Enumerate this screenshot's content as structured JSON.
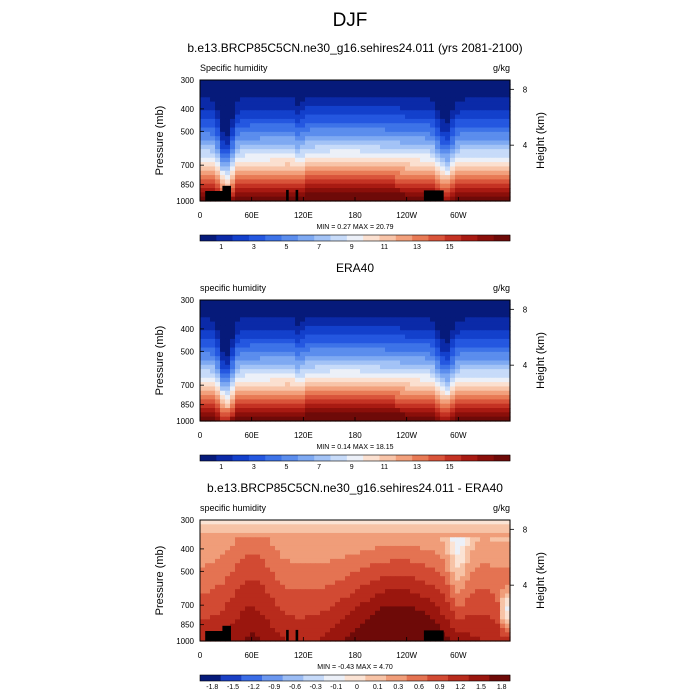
{
  "main_title": "DJF",
  "palettes": {
    "humidity": [
      "#061a7a",
      "#0b2aa8",
      "#1340cc",
      "#2457e0",
      "#3d73e8",
      "#5b8ded",
      "#7ea9f2",
      "#a3c3f6",
      "#c7dbf9",
      "#ecf0f8",
      "#fbe0d0",
      "#f8c4a8",
      "#f2a07c",
      "#e87a55",
      "#d9543a",
      "#c43223",
      "#a81a12",
      "#8a0f0a",
      "#6e0a08"
    ],
    "difference": [
      "#061a7a",
      "#1a3fc4",
      "#3a6ce6",
      "#6b97ef",
      "#9bbcf4",
      "#c6daf9",
      "#ecf0f8",
      "#fbe3d4",
      "#f7c3a6",
      "#f09d79",
      "#e47352",
      "#d24a33",
      "#b82b1c",
      "#9a160e",
      "#6e0a08"
    ]
  },
  "chart_data": [
    {
      "type": "heatmap",
      "panel_title": "b.e13.BRCP85C5CN.ne30_g16.sehires24.011 (yrs 2081-2100)",
      "left_label": "Specific humidity",
      "right_label": "g/kg",
      "ylabel": "Pressure (mb)",
      "ylabel_right": "Height (km)",
      "y_ticks": [
        "300",
        "400",
        "500",
        "700",
        "850",
        "1000"
      ],
      "y_tick_values": [
        300,
        400,
        500,
        700,
        850,
        1000
      ],
      "height_ticks": [
        "8",
        "4"
      ],
      "height_tick_values": [
        8,
        4
      ],
      "x_ticks": [
        "0",
        "60E",
        "120E",
        "180",
        "120W",
        "60W"
      ],
      "x_tick_values": [
        0,
        60,
        120,
        180,
        240,
        300
      ],
      "stats": "MIN =   0.27  MAX =  20.79",
      "colorbar_labels": [
        "1",
        "3",
        "5",
        "7",
        "9",
        "11",
        "13",
        "15"
      ],
      "palette": "humidity",
      "surface_min": 0.27,
      "surface_max": 20.79,
      "xlim": [
        0,
        360
      ],
      "ylim": [
        300,
        1000
      ],
      "land_mask": true
    },
    {
      "type": "heatmap",
      "panel_title": "ERA40",
      "left_label": "specific humidity",
      "right_label": "g/kg",
      "ylabel": "Pressure (mb)",
      "ylabel_right": "Height (km)",
      "y_ticks": [
        "300",
        "400",
        "500",
        "700",
        "850",
        "1000"
      ],
      "y_tick_values": [
        300,
        400,
        500,
        700,
        850,
        1000
      ],
      "height_ticks": [
        "8",
        "4"
      ],
      "height_tick_values": [
        8,
        4
      ],
      "x_ticks": [
        "0",
        "60E",
        "120E",
        "180",
        "120W",
        "60W"
      ],
      "x_tick_values": [
        0,
        60,
        120,
        180,
        240,
        300
      ],
      "stats": "MIN =   0.14  MAX =  18.15",
      "colorbar_labels": [
        "1",
        "3",
        "5",
        "7",
        "9",
        "11",
        "13",
        "15"
      ],
      "palette": "humidity",
      "surface_min": 0.14,
      "surface_max": 18.15,
      "xlim": [
        0,
        360
      ],
      "ylim": [
        300,
        1000
      ],
      "land_mask": false
    },
    {
      "type": "heatmap",
      "panel_title": "b.e13.BRCP85C5CN.ne30_g16.sehires24.011 - ERA40",
      "left_label": "specific humidity",
      "right_label": "g/kg",
      "ylabel": "Pressure (mb)",
      "ylabel_right": "Height (km)",
      "y_ticks": [
        "300",
        "400",
        "500",
        "700",
        "850",
        "1000"
      ],
      "y_tick_values": [
        300,
        400,
        500,
        700,
        850,
        1000
      ],
      "height_ticks": [
        "8",
        "4"
      ],
      "height_tick_values": [
        8,
        4
      ],
      "x_ticks": [
        "0",
        "60E",
        "120E",
        "180",
        "120W",
        "60W"
      ],
      "x_tick_values": [
        0,
        60,
        120,
        180,
        240,
        300
      ],
      "stats": "MIN =  -0.43  MAX =   4.70",
      "colorbar_labels": [
        "-1.8",
        "-1.5",
        "-1.2",
        "-0.9",
        "-0.6",
        "-0.3",
        "-0.1",
        "0",
        "0.1",
        "0.3",
        "0.6",
        "0.9",
        "1.2",
        "1.5",
        "1.8"
      ],
      "palette": "difference",
      "xlim": [
        0,
        360
      ],
      "ylim": [
        300,
        1000
      ],
      "land_mask": true
    }
  ]
}
